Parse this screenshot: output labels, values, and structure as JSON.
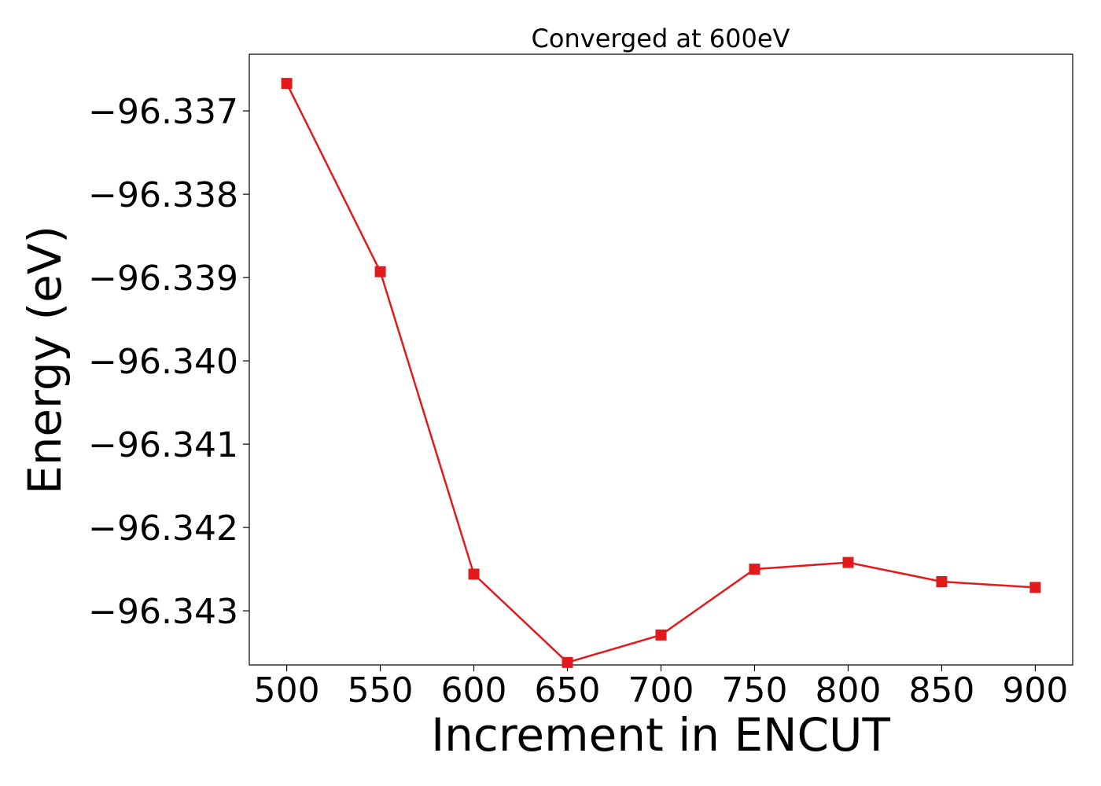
{
  "chart_data": {
    "type": "line",
    "title": "Converged at 600eV",
    "xlabel": "Increment in ENCUT",
    "ylabel": "Energy (eV)",
    "x": [
      500,
      550,
      600,
      650,
      700,
      750,
      800,
      850,
      900
    ],
    "series": [
      {
        "values": [
          -96.33667,
          -96.33893,
          -96.34256,
          -96.34362,
          -96.34329,
          -96.3425,
          -96.34242,
          -96.34265,
          -96.34272
        ],
        "color": "#e31a1c",
        "marker": "square"
      }
    ],
    "xticks": [
      500,
      550,
      600,
      650,
      700,
      750,
      800,
      850,
      900
    ],
    "xtick_labels": [
      "500",
      "550",
      "600",
      "650",
      "700",
      "750",
      "800",
      "850",
      "900"
    ],
    "yticks": [
      -96.337,
      -96.338,
      -96.339,
      -96.34,
      -96.341,
      -96.342,
      -96.343
    ],
    "ytick_labels": [
      "−96.337",
      "−96.338",
      "−96.339",
      "−96.340",
      "−96.341",
      "−96.342",
      "−96.343"
    ],
    "xlim": [
      480,
      920
    ],
    "ylim": [
      -96.34365,
      -96.33632
    ],
    "grid": false,
    "legend": "none"
  }
}
